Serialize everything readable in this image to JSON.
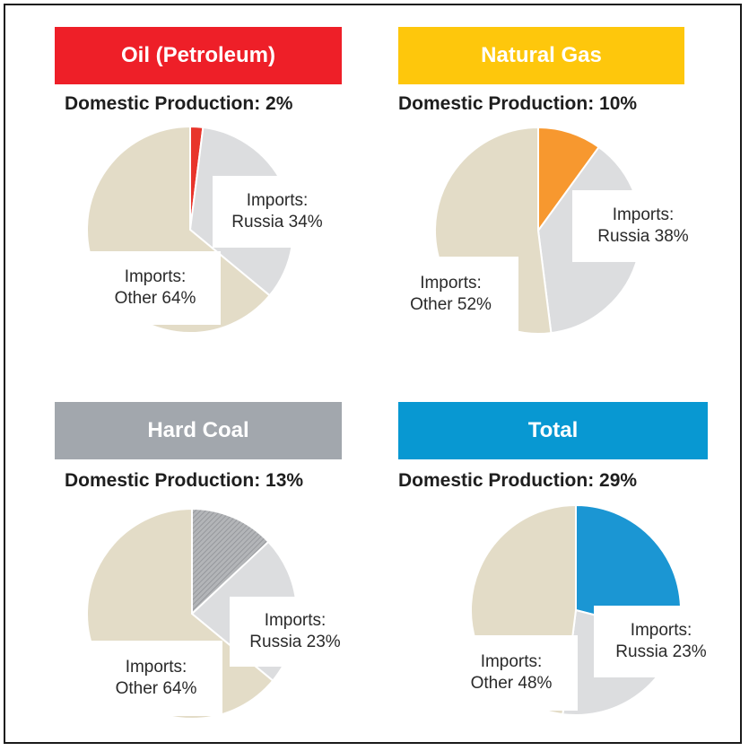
{
  "colors": {
    "tan": "#e3dcc7",
    "grey_light": "#dcdddf",
    "edge": "#ffffff"
  },
  "chart_data": [
    {
      "type": "pie",
      "title": "Oil (Petroleum)",
      "subtitle": "Domestic Production: 2%",
      "title_color": "#ee1f28",
      "slices": [
        {
          "label": "Domestic Production",
          "value": 2,
          "color": "#e8352b"
        },
        {
          "label": "Imports: Russia",
          "value": 34,
          "color": "#dcdddf"
        },
        {
          "label": "Imports: Other",
          "value": 64,
          "color": "#e3dcc7"
        }
      ],
      "labels": [
        {
          "line1": "Imports:",
          "line2": "Russia 34%"
        },
        {
          "line1": "Imports:",
          "line2": "Other 64%"
        }
      ]
    },
    {
      "type": "pie",
      "title": "Natural Gas",
      "subtitle": "Domestic Production: 10%",
      "title_color": "#fec70c",
      "slices": [
        {
          "label": "Domestic Production",
          "value": 10,
          "color": "#f7982f"
        },
        {
          "label": "Imports: Russia",
          "value": 38,
          "color": "#dcdddf"
        },
        {
          "label": "Imports: Other",
          "value": 52,
          "color": "#e3dcc7"
        }
      ],
      "labels": [
        {
          "line1": "Imports:",
          "line2": "Russia 38%"
        },
        {
          "line1": "Imports:",
          "line2": "Other 52%"
        }
      ]
    },
    {
      "type": "pie",
      "title": "Hard Coal",
      "subtitle": "Domestic Production: 13%",
      "title_color": "#a2a7ad",
      "slices": [
        {
          "label": "Domestic Production",
          "value": 13,
          "color": "#a9abae",
          "hatched": true
        },
        {
          "label": "Imports: Russia",
          "value": 23,
          "color": "#dcdddf"
        },
        {
          "label": "Imports: Other",
          "value": 64,
          "color": "#e3dcc7"
        }
      ],
      "labels": [
        {
          "line1": "Imports:",
          "line2": "Russia 23%"
        },
        {
          "line1": "Imports:",
          "line2": "Other 64%"
        }
      ]
    },
    {
      "type": "pie",
      "title": "Total",
      "subtitle": "Domestic Production: 29%",
      "title_color": "#0898d2",
      "slices": [
        {
          "label": "Domestic Production",
          "value": 29,
          "color": "#1b96d3"
        },
        {
          "label": "Imports: Russia",
          "value": 23,
          "color": "#dcdddf"
        },
        {
          "label": "Imports: Other",
          "value": 48,
          "color": "#e3dcc7"
        }
      ],
      "labels": [
        {
          "line1": "Imports:",
          "line2": "Russia 23%"
        },
        {
          "line1": "Imports:",
          "line2": "Other 48%"
        }
      ]
    }
  ]
}
